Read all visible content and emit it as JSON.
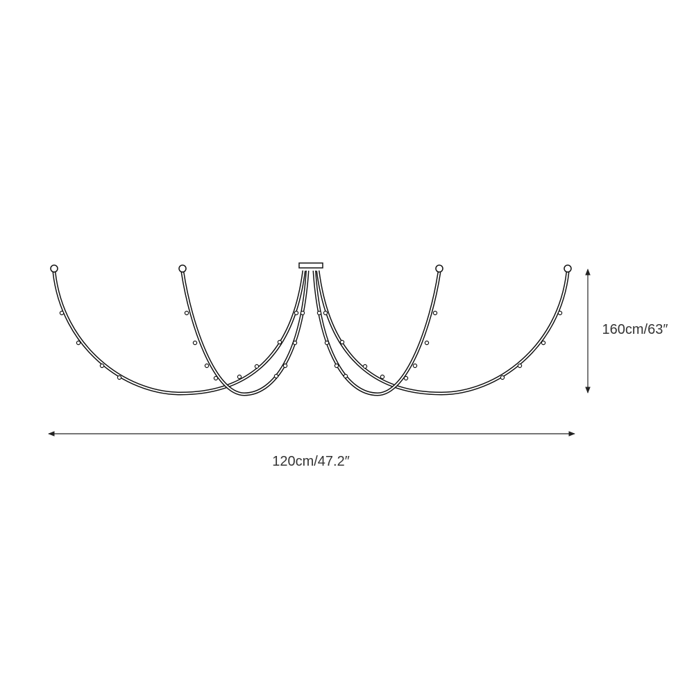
{
  "dimensions": {
    "width_label": "120cm/47.2″",
    "height_label": "160cm/63″"
  }
}
